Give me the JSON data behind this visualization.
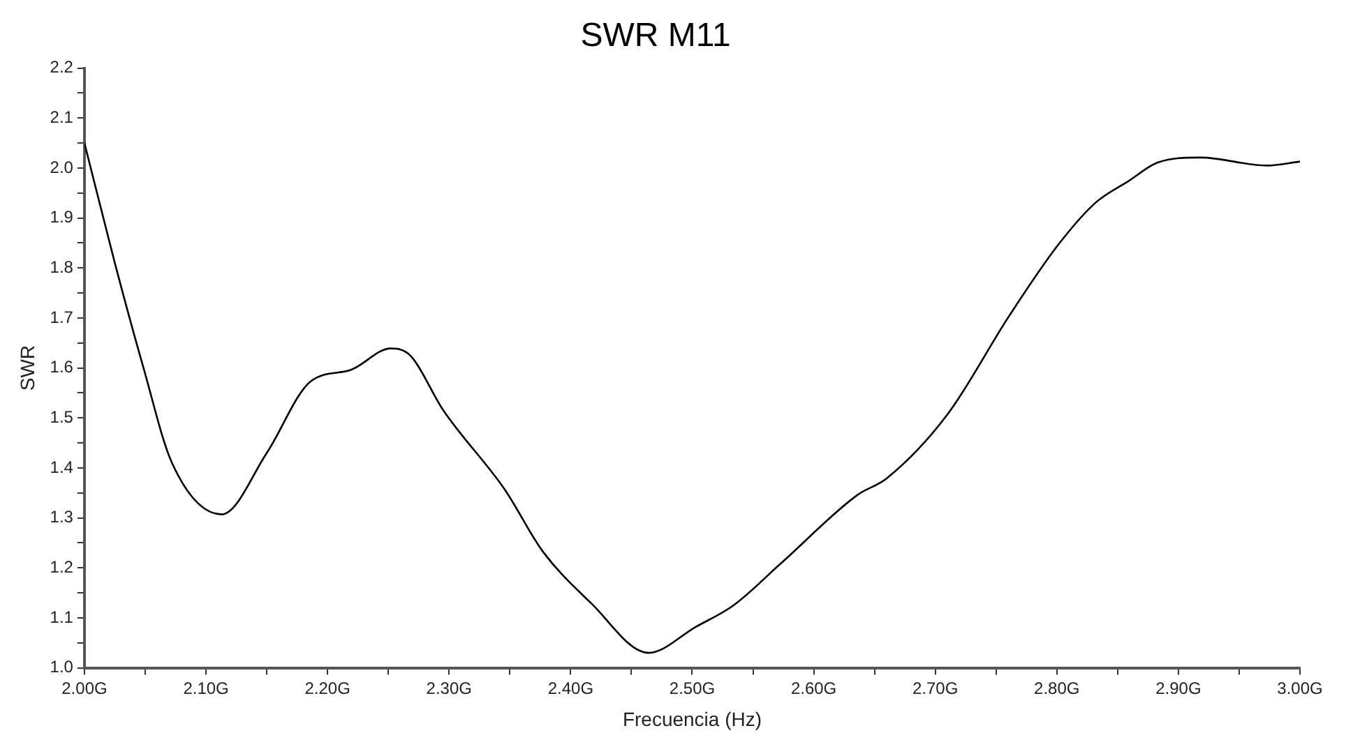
{
  "chart_data": {
    "type": "line",
    "title": "SWR M11",
    "xlabel": "Frecuencia (Hz)",
    "ylabel": "SWR",
    "x": [
      2.0,
      2.025,
      2.0486,
      2.072,
      2.113,
      2.15,
      2.186,
      2.219,
      2.252,
      2.268,
      2.295,
      2.346,
      2.377,
      2.417,
      2.464,
      2.503,
      2.534,
      2.573,
      2.636,
      2.66,
      2.71,
      2.761,
      2.801,
      2.832,
      2.859,
      2.883,
      2.918,
      2.973,
      3.0
    ],
    "series": [
      {
        "color": "#000000",
        "values": [
          2.05,
          1.81,
          1.6,
          1.41,
          1.307,
          1.43,
          1.573,
          1.596,
          1.639,
          1.625,
          1.516,
          1.356,
          1.233,
          1.129,
          1.03,
          1.082,
          1.125,
          1.209,
          1.346,
          1.379,
          1.507,
          1.705,
          1.846,
          1.931,
          1.974,
          2.011,
          2.021,
          2.005,
          2.013
        ]
      }
    ],
    "xlim": [
      2.0,
      3.0
    ],
    "xticks": [
      {
        "value": 2.0,
        "label": "2.00G"
      },
      {
        "value": 2.05,
        "label": null
      },
      {
        "value": 2.1,
        "label": "2.10G"
      },
      {
        "value": 2.15,
        "label": null
      },
      {
        "value": 2.2,
        "label": "2.20G"
      },
      {
        "value": 2.25,
        "label": null
      },
      {
        "value": 2.3,
        "label": "2.30G"
      },
      {
        "value": 2.35,
        "label": null
      },
      {
        "value": 2.4,
        "label": "2.40G"
      },
      {
        "value": 2.45,
        "label": null
      },
      {
        "value": 2.5,
        "label": "2.50G"
      },
      {
        "value": 2.55,
        "label": null
      },
      {
        "value": 2.6,
        "label": "2.60G"
      },
      {
        "value": 2.65,
        "label": null
      },
      {
        "value": 2.7,
        "label": "2.70G"
      },
      {
        "value": 2.75,
        "label": null
      },
      {
        "value": 2.8,
        "label": "2.80G"
      },
      {
        "value": 2.85,
        "label": null
      },
      {
        "value": 2.9,
        "label": "2.90G"
      },
      {
        "value": 2.95,
        "label": null
      },
      {
        "value": 3.0,
        "label": "3.00G"
      }
    ],
    "ylim": [
      1.0,
      2.2
    ],
    "yticks": [
      {
        "value": 1.0,
        "label": "1.0"
      },
      {
        "value": 1.05,
        "label": null
      },
      {
        "value": 1.1,
        "label": "1.1"
      },
      {
        "value": 1.15,
        "label": null
      },
      {
        "value": 1.2,
        "label": "1.2"
      },
      {
        "value": 1.25,
        "label": null
      },
      {
        "value": 1.3,
        "label": "1.3"
      },
      {
        "value": 1.35,
        "label": null
      },
      {
        "value": 1.4,
        "label": "1.4"
      },
      {
        "value": 1.45,
        "label": null
      },
      {
        "value": 1.5,
        "label": "1.5"
      },
      {
        "value": 1.55,
        "label": null
      },
      {
        "value": 1.6,
        "label": "1.6"
      },
      {
        "value": 1.65,
        "label": null
      },
      {
        "value": 1.7,
        "label": "1.7"
      },
      {
        "value": 1.75,
        "label": null
      },
      {
        "value": 1.8,
        "label": "1.8"
      },
      {
        "value": 1.85,
        "label": null
      },
      {
        "value": 1.9,
        "label": "1.9"
      },
      {
        "value": 1.95,
        "label": null
      },
      {
        "value": 2.0,
        "label": "2.0"
      },
      {
        "value": 2.05,
        "label": null
      },
      {
        "value": 2.1,
        "label": "2.1"
      },
      {
        "value": 2.15,
        "label": null
      },
      {
        "value": 2.2,
        "label": "2.2"
      }
    ],
    "grid": false,
    "legend": false,
    "marker": "none",
    "line_style": "solid"
  }
}
